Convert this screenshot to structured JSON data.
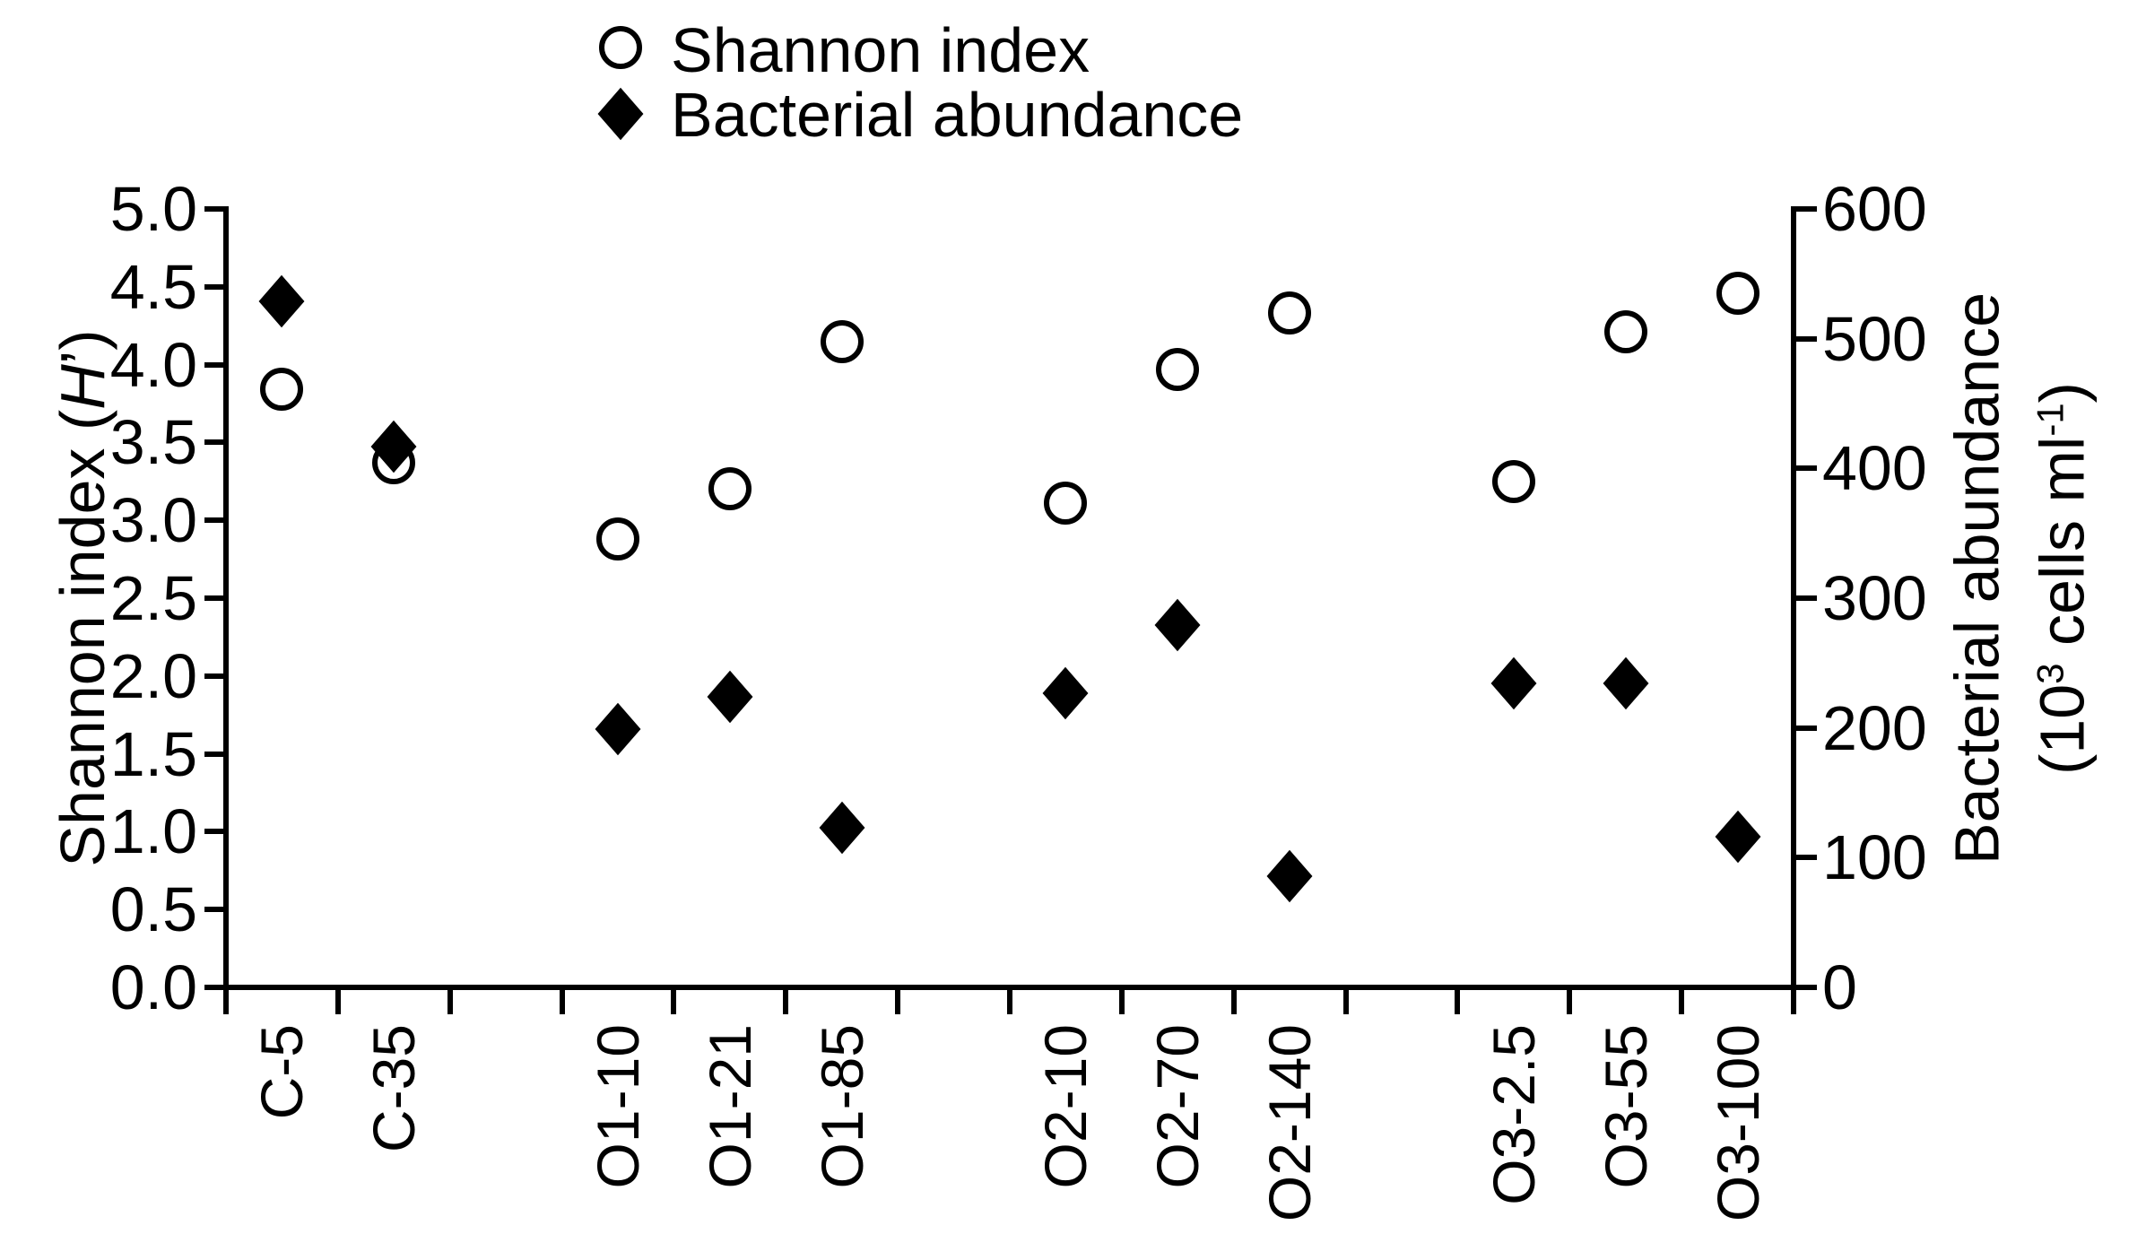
{
  "colors": {
    "foreground": "#000000",
    "background": "#ffffff"
  },
  "chart_data": {
    "type": "scatter",
    "title": "",
    "categories": [
      "C-5",
      "C-35",
      "O1-10",
      "O1-21",
      "O1-85",
      "O2-10",
      "O2-70",
      "O2-140",
      "O3-2.5",
      "O3-55",
      "O3-100"
    ],
    "category_slots": [
      1,
      2,
      4,
      5,
      6,
      8,
      9,
      10,
      12,
      13,
      14
    ],
    "total_slots": 14,
    "series": [
      {
        "name": "Shannon index",
        "marker": "open-circle",
        "axis": "left",
        "values": [
          3.84,
          3.37,
          2.88,
          3.2,
          4.15,
          3.11,
          3.97,
          4.33,
          3.25,
          4.21,
          4.46
        ]
      },
      {
        "name": "Bacterial abundance",
        "marker": "filled-diamond",
        "axis": "right",
        "values": [
          529,
          417,
          199,
          224,
          123,
          227,
          279,
          86,
          234,
          234,
          116
        ]
      }
    ],
    "left_axis": {
      "title_prefix": "Shannon index (",
      "title_italic": "H",
      "title_suffix": "’)",
      "min": 0,
      "max": 5,
      "step": 0.5,
      "tick_labels": [
        "0.0",
        "0.5",
        "1.0",
        "1.5",
        "2.0",
        "2.5",
        "3.0",
        "3.5",
        "4.0",
        "4.5",
        "5.0"
      ]
    },
    "right_axis": {
      "title_line1": "Bacterial abundance",
      "title_line2_pre": "(10",
      "title_line2_sup1": "3",
      "title_line2_mid": " cells ml",
      "title_line2_sup2": "-1",
      "title_line2_end": ")",
      "min": 0,
      "max": 600,
      "step": 100,
      "tick_labels": [
        "0",
        "100",
        "200",
        "300",
        "400",
        "500",
        "600"
      ]
    },
    "legend": [
      {
        "label": "Shannon index",
        "marker": "open-circle"
      },
      {
        "label": "Bacterial abundance",
        "marker": "filled-diamond"
      }
    ],
    "grid": false,
    "legend_position": "top-center"
  }
}
